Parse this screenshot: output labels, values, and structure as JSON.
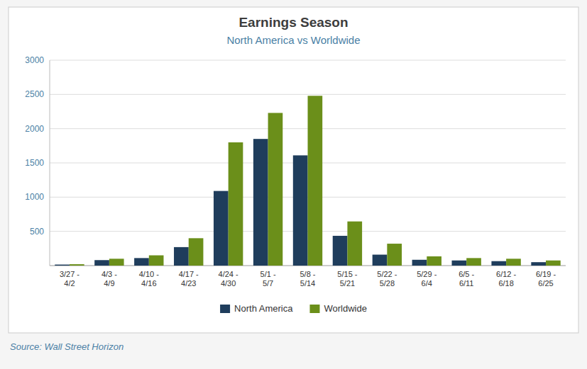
{
  "chart_data": {
    "type": "bar",
    "title": "Earnings Season",
    "subtitle": "North America vs Worldwide",
    "annotations": [
      "Source: Wall Street Horizon"
    ],
    "categories": [
      "3/27 -\n4/2",
      "4/3 -\n4/9",
      "4/10 -\n4/16",
      "4/17 -\n4/23",
      "4/24 -\n4/30",
      "5/1 -\n5/7",
      "5/8 -\n5/14",
      "5/15 -\n5/21",
      "5/22 -\n5/28",
      "5/29 -\n6/4",
      "6/5 -\n6/11",
      "6/12 -\n6/18",
      "6/19 -\n6/25"
    ],
    "series": [
      {
        "name": "North America",
        "color": "#1f3d5c",
        "values": [
          15,
          80,
          110,
          270,
          1090,
          1850,
          1610,
          435,
          160,
          85,
          75,
          65,
          50
        ]
      },
      {
        "name": "Worldwide",
        "color": "#6b8f1a",
        "values": [
          20,
          100,
          150,
          400,
          1800,
          2230,
          2480,
          645,
          320,
          135,
          110,
          100,
          75
        ]
      }
    ],
    "ylim": [
      0,
      3000
    ],
    "yticks": [
      500,
      1000,
      1500,
      2000,
      2500,
      3000
    ],
    "grid": true,
    "legend": "bottom"
  }
}
